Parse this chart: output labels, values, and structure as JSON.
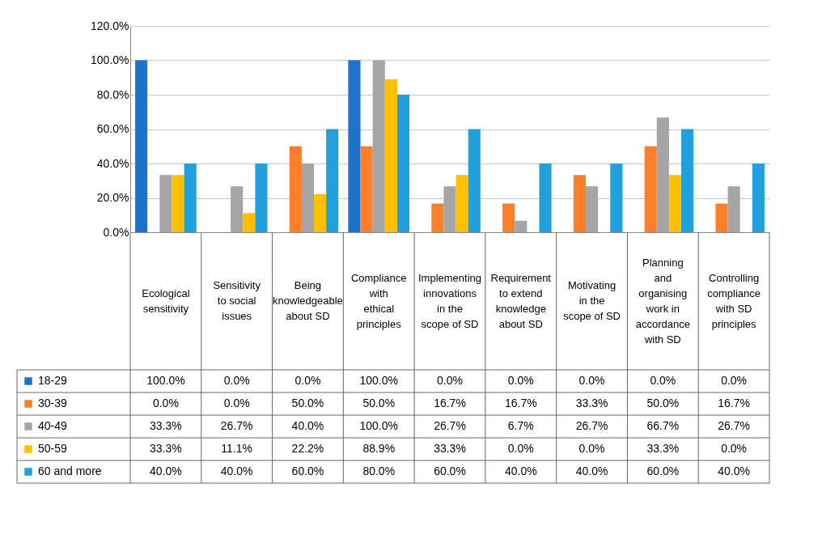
{
  "chart_data": {
    "type": "bar",
    "categories": [
      "Ecological sensitivity",
      "Sensitivity to social issues",
      "Being knowledgeable about SD",
      "Compliance with ethical principles",
      "Implementing innovations in the scope of SD",
      "Requirement to extend knowledge about SD",
      "Motivating in the scope of SD",
      "Planning and organising work in accordance with SD",
      "Controlling compliance with SD principles"
    ],
    "series": [
      {
        "name": "18-29",
        "color": "#1f72c9",
        "values": [
          100,
          0,
          0,
          100,
          0,
          0,
          0,
          0,
          0
        ],
        "value_labels": [
          "100.0%",
          "0.0%",
          "0.0%",
          "100.0%",
          "0.0%",
          "0.0%",
          "0.0%",
          "0.0%",
          "0.0%"
        ]
      },
      {
        "name": "30-39",
        "color": "#fd7f2a",
        "values": [
          0,
          0,
          50,
          50,
          16.7,
          16.7,
          33.3,
          50,
          16.7
        ],
        "value_labels": [
          "0.0%",
          "0.0%",
          "50.0%",
          "50.0%",
          "16.7%",
          "16.7%",
          "33.3%",
          "50.0%",
          "16.7%"
        ]
      },
      {
        "name": "40-49",
        "color": "#a5a5a5",
        "values": [
          33.3,
          26.7,
          40,
          100,
          26.7,
          6.7,
          26.7,
          66.7,
          26.7
        ],
        "value_labels": [
          "33.3%",
          "26.7%",
          "40.0%",
          "100.0%",
          "26.7%",
          "6.7%",
          "26.7%",
          "66.7%",
          "26.7%"
        ]
      },
      {
        "name": "50-59",
        "color": "#ffc000",
        "values": [
          33.3,
          11.1,
          22.2,
          88.9,
          33.3,
          0,
          0,
          33.3,
          0
        ],
        "value_labels": [
          "33.3%",
          "11.1%",
          "22.2%",
          "88.9%",
          "33.3%",
          "0.0%",
          "0.0%",
          "33.3%",
          "0.0%"
        ]
      },
      {
        "name": "60 and more",
        "color": "#21a0dc",
        "values": [
          40,
          40,
          60,
          80,
          60,
          40,
          40,
          60,
          40
        ],
        "value_labels": [
          "40.0%",
          "40.0%",
          "60.0%",
          "80.0%",
          "60.0%",
          "40.0%",
          "40.0%",
          "60.0%",
          "40.0%"
        ]
      }
    ],
    "ylim": [
      0,
      120
    ],
    "yticks": [
      {
        "value": 0,
        "label": "0.0%"
      },
      {
        "value": 20,
        "label": "20.0%"
      },
      {
        "value": 40,
        "label": "40.0%"
      },
      {
        "value": 60,
        "label": "60.0%"
      },
      {
        "value": 80,
        "label": "80.0%"
      },
      {
        "value": 100,
        "label": "100.0%"
      },
      {
        "value": 120,
        "label": "120.0%"
      }
    ],
    "grid": "y",
    "legend": "bottom left"
  }
}
